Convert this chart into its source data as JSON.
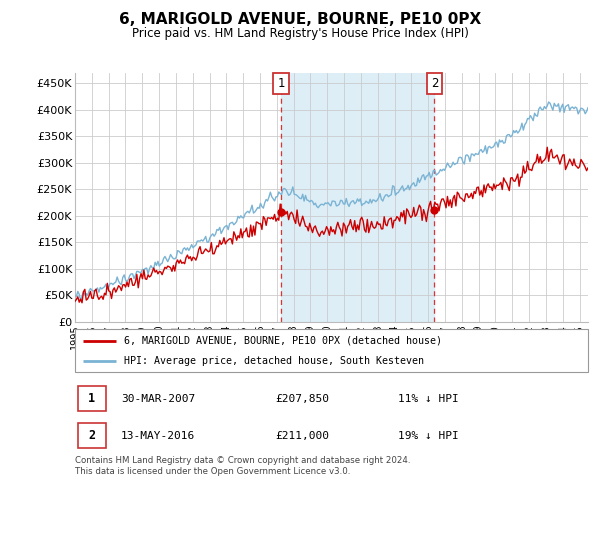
{
  "title": "6, MARIGOLD AVENUE, BOURNE, PE10 0PX",
  "subtitle": "Price paid vs. HM Land Registry's House Price Index (HPI)",
  "ylabel_ticks": [
    "£0",
    "£50K",
    "£100K",
    "£150K",
    "£200K",
    "£250K",
    "£300K",
    "£350K",
    "£400K",
    "£450K"
  ],
  "ytick_values": [
    0,
    50000,
    100000,
    150000,
    200000,
    250000,
    300000,
    350000,
    400000,
    450000
  ],
  "ylim": [
    0,
    470000
  ],
  "xlim_start": 1995.0,
  "xlim_end": 2025.5,
  "hpi_color": "#7ab3d4",
  "hpi_fill_color": "#ddeef7",
  "price_color": "#cc0000",
  "marker1_x": 2007.25,
  "marker1_y": 207850,
  "marker2_x": 2016.37,
  "marker2_y": 211000,
  "legend_line1": "6, MARIGOLD AVENUE, BOURNE, PE10 0PX (detached house)",
  "legend_line2": "HPI: Average price, detached house, South Kesteven",
  "table_row1": [
    "1",
    "30-MAR-2007",
    "£207,850",
    "11% ↓ HPI"
  ],
  "table_row2": [
    "2",
    "13-MAY-2016",
    "£211,000",
    "19% ↓ HPI"
  ],
  "footer": "Contains HM Land Registry data © Crown copyright and database right 2024.\nThis data is licensed under the Open Government Licence v3.0.",
  "background_color": "#ffffff",
  "grid_color": "#cccccc"
}
